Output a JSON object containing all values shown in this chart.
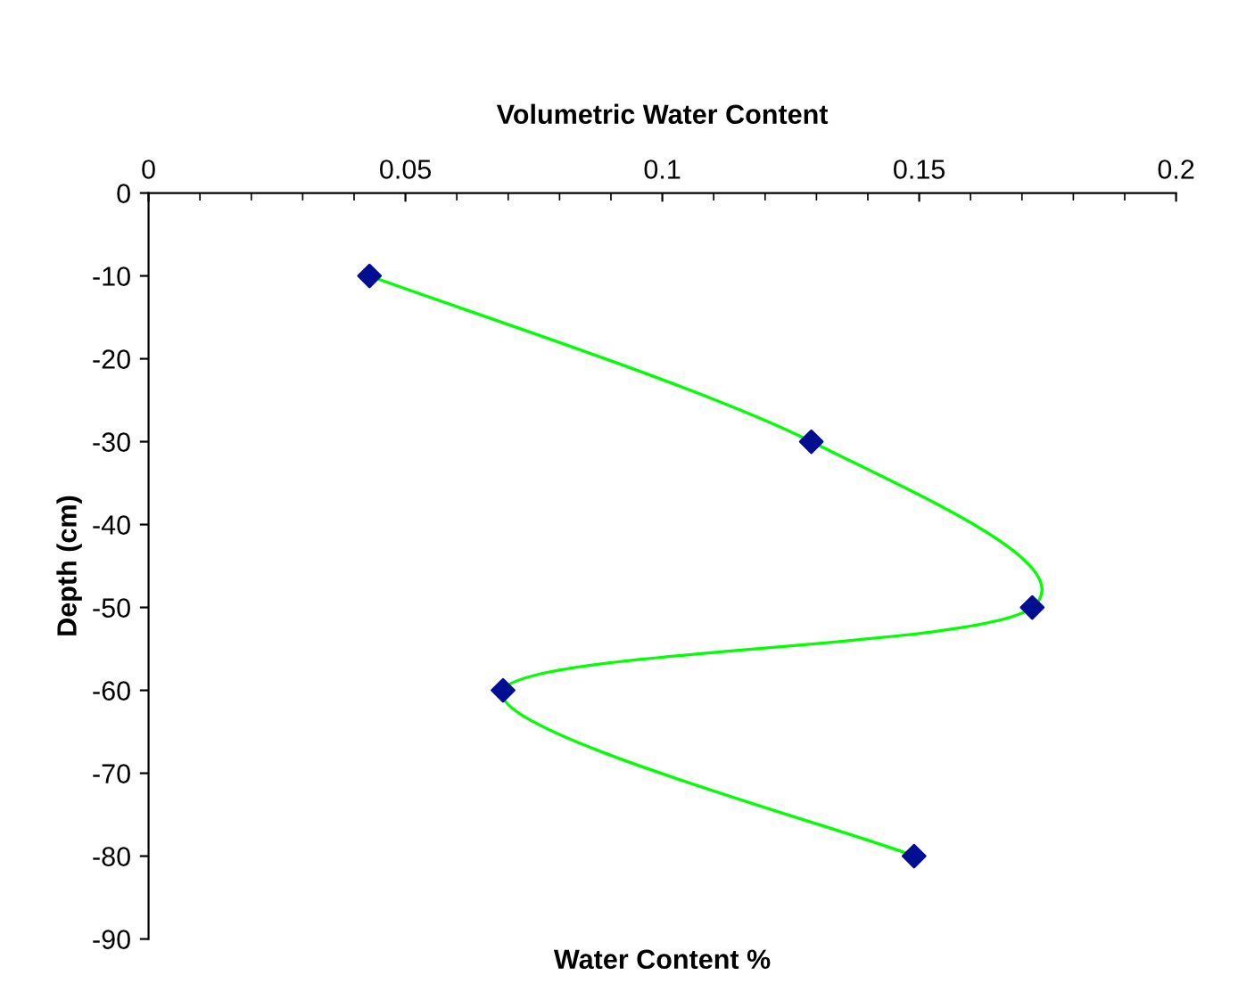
{
  "chart_data": {
    "type": "line",
    "title": "Volumetric Water Content",
    "xlabel": "Water Content %",
    "ylabel": "Depth (cm)",
    "x": [
      0.043,
      0.129,
      0.172,
      0.069,
      0.149
    ],
    "series": [
      {
        "color": "#00ff00",
        "marker": "none",
        "values": [
          -10,
          -30,
          -50,
          -60,
          -80
        ]
      },
      {
        "type": "scatter",
        "color": "#000f91",
        "marker": "diamond",
        "values": [
          -10,
          -30,
          -50,
          -60,
          -80
        ]
      }
    ],
    "xlim": [
      0,
      0.2
    ],
    "xticks": [
      0,
      0.05,
      0.1,
      0.15,
      0.2
    ],
    "ylim": [
      -90,
      0
    ],
    "yticks": [
      0,
      -10,
      -20,
      -30,
      -40,
      -50,
      -60,
      -70,
      -80,
      -90
    ],
    "grid": false,
    "legend": false
  }
}
